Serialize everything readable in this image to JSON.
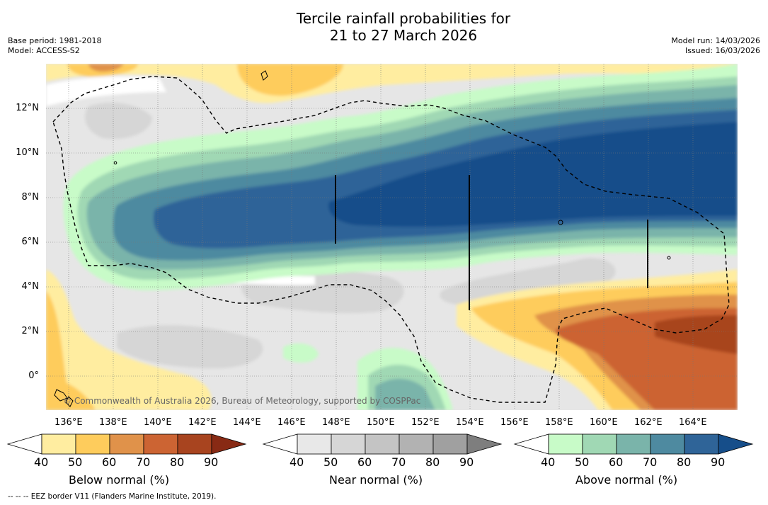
{
  "title_line1": "Tercile rainfall probabilities for",
  "title_line2": "21 to 27 March 2026",
  "meta_left": {
    "base_period": "Base period: 1981-2018",
    "model": "Model: ACCESS-S2"
  },
  "meta_right": {
    "model_run": "Model run: 14/03/2026",
    "issued": "Issued: 16/03/2026"
  },
  "lon_ticks": [
    "136°E",
    "138°E",
    "140°E",
    "142°E",
    "144°E",
    "146°E",
    "148°E",
    "150°E",
    "152°E",
    "154°E",
    "156°E",
    "158°E",
    "160°E",
    "162°E",
    "164°E"
  ],
  "lat_ticks": [
    "12°N",
    "10°N",
    "8°N",
    "6°N",
    "4°N",
    "2°N",
    "0°"
  ],
  "copyright": "© Commonwealth of Australia 2026, Bureau of Meteorology, supported by COSPPac",
  "colorbars": [
    {
      "title": "Below normal (%)",
      "ticks": [
        "40",
        "50",
        "60",
        "70",
        "80",
        "90"
      ],
      "colors": [
        "#ffffff",
        "#ffeda0",
        "#fecc5c",
        "#e0924a",
        "#cc6433",
        "#a8441f",
        "#882a14"
      ]
    },
    {
      "title": "Near normal (%)",
      "ticks": [
        "40",
        "50",
        "60",
        "70",
        "80",
        "90"
      ],
      "colors": [
        "#ffffff",
        "#e8e8e8",
        "#d6d6d6",
        "#c4c4c4",
        "#b2b2b2",
        "#a0a0a0",
        "#7e7e7e"
      ]
    },
    {
      "title": "Above normal (%)",
      "ticks": [
        "40",
        "50",
        "60",
        "70",
        "80",
        "90"
      ],
      "colors": [
        "#ffffff",
        "#c8fbc8",
        "#a0d8b4",
        "#7ab4aa",
        "#4e8aa0",
        "#2f6498",
        "#164e8a"
      ]
    }
  ],
  "footnote": "--  --  -- EEZ border V11 (Flanders Marine Institute, 2019)."
}
